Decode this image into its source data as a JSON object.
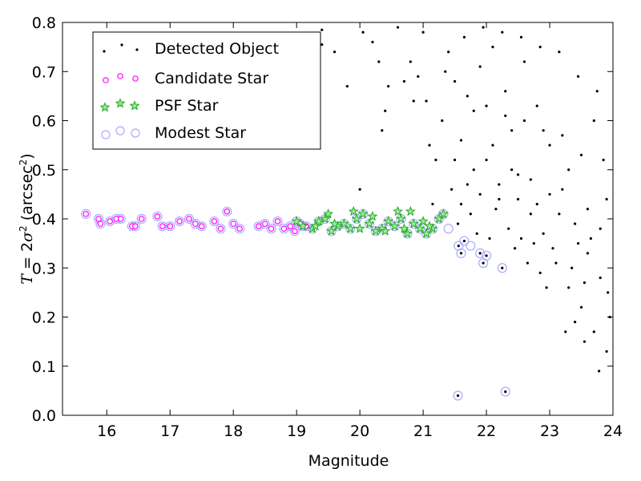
{
  "chart_data": {
    "type": "scatter",
    "xlabel": "Magnitude",
    "ylabel_parts": {
      "var": "T",
      "eq": " = 2",
      "sigma": "σ",
      "sq": "2",
      "unit_open": " (arcsec",
      "unit_sup": "2",
      "unit_close": ")"
    },
    "xlim": [
      15.3,
      24
    ],
    "ylim": [
      0.0,
      0.8
    ],
    "xticks": [
      16,
      17,
      18,
      19,
      20,
      21,
      22,
      23,
      24
    ],
    "yticks": [
      0.0,
      0.1,
      0.2,
      0.3,
      0.4,
      0.5,
      0.6,
      0.7,
      0.8
    ],
    "ytick_labels": [
      "0.0",
      "0.1",
      "0.2",
      "0.3",
      "0.4",
      "0.5",
      "0.6",
      "0.7",
      "0.8"
    ],
    "grid": false,
    "legend_position": "top-left",
    "series": [
      {
        "name": "Detected Object",
        "marker": "dot",
        "color": "#000000",
        "points": [
          [
            15.67,
            0.41
          ],
          [
            15.87,
            0.4
          ],
          [
            15.9,
            0.39
          ],
          [
            16.05,
            0.395
          ],
          [
            16.15,
            0.4
          ],
          [
            16.22,
            0.4
          ],
          [
            16.4,
            0.385
          ],
          [
            16.45,
            0.385
          ],
          [
            16.55,
            0.4
          ],
          [
            16.8,
            0.405
          ],
          [
            16.88,
            0.385
          ],
          [
            17.0,
            0.385
          ],
          [
            17.15,
            0.395
          ],
          [
            17.3,
            0.4
          ],
          [
            17.4,
            0.39
          ],
          [
            17.5,
            0.385
          ],
          [
            17.7,
            0.395
          ],
          [
            17.8,
            0.38
          ],
          [
            17.9,
            0.415
          ],
          [
            18.0,
            0.39
          ],
          [
            18.1,
            0.38
          ],
          [
            18.4,
            0.385
          ],
          [
            18.5,
            0.39
          ],
          [
            18.6,
            0.38
          ],
          [
            18.7,
            0.395
          ],
          [
            18.8,
            0.38
          ],
          [
            18.9,
            0.385
          ],
          [
            18.97,
            0.375
          ],
          [
            19.2,
            0.63
          ],
          [
            19.4,
            0.785
          ],
          [
            19.4,
            0.755
          ],
          [
            19.6,
            0.74
          ],
          [
            19.8,
            0.67
          ],
          [
            20.0,
            0.46
          ],
          [
            20.05,
            0.78
          ],
          [
            20.2,
            0.76
          ],
          [
            20.3,
            0.72
          ],
          [
            20.35,
            0.58
          ],
          [
            20.4,
            0.62
          ],
          [
            20.45,
            0.67
          ],
          [
            20.6,
            0.79
          ],
          [
            20.7,
            0.68
          ],
          [
            20.8,
            0.72
          ],
          [
            20.85,
            0.64
          ],
          [
            20.92,
            0.69
          ],
          [
            21.0,
            0.78
          ],
          [
            21.05,
            0.64
          ],
          [
            21.1,
            0.55
          ],
          [
            21.15,
            0.43
          ],
          [
            21.2,
            0.52
          ],
          [
            21.3,
            0.6
          ],
          [
            21.55,
            0.04
          ],
          [
            21.56,
            0.345
          ],
          [
            21.6,
            0.33
          ],
          [
            21.65,
            0.355
          ],
          [
            21.9,
            0.33
          ],
          [
            21.95,
            0.31
          ],
          [
            22.0,
            0.325
          ],
          [
            22.3,
            0.048
          ],
          [
            22.25,
            0.3
          ],
          [
            21.4,
            0.74
          ],
          [
            21.5,
            0.68
          ],
          [
            21.6,
            0.56
          ],
          [
            21.7,
            0.47
          ],
          [
            21.8,
            0.62
          ],
          [
            21.9,
            0.71
          ],
          [
            22.0,
            0.52
          ],
          [
            22.1,
            0.75
          ],
          [
            22.2,
            0.44
          ],
          [
            22.3,
            0.66
          ],
          [
            22.4,
            0.58
          ],
          [
            22.5,
            0.49
          ],
          [
            22.6,
            0.72
          ],
          [
            22.7,
            0.41
          ],
          [
            22.8,
            0.63
          ],
          [
            22.9,
            0.37
          ],
          [
            23.0,
            0.55
          ],
          [
            23.1,
            0.31
          ],
          [
            23.2,
            0.46
          ],
          [
            23.3,
            0.26
          ],
          [
            23.4,
            0.39
          ],
          [
            23.5,
            0.22
          ],
          [
            23.6,
            0.33
          ],
          [
            23.7,
            0.17
          ],
          [
            23.8,
            0.28
          ],
          [
            23.9,
            0.13
          ],
          [
            23.95,
            0.2
          ],
          [
            23.78,
            0.09
          ],
          [
            23.25,
            0.17
          ],
          [
            22.95,
            0.26
          ],
          [
            21.45,
            0.46
          ],
          [
            21.55,
            0.39
          ],
          [
            21.75,
            0.41
          ],
          [
            21.85,
            0.37
          ],
          [
            22.05,
            0.36
          ],
          [
            22.15,
            0.42
          ],
          [
            22.35,
            0.38
          ],
          [
            22.45,
            0.34
          ],
          [
            22.55,
            0.36
          ],
          [
            22.65,
            0.31
          ],
          [
            22.75,
            0.35
          ],
          [
            22.85,
            0.29
          ],
          [
            23.05,
            0.34
          ],
          [
            23.15,
            0.41
          ],
          [
            23.35,
            0.3
          ],
          [
            23.45,
            0.35
          ],
          [
            23.55,
            0.27
          ],
          [
            23.65,
            0.36
          ],
          [
            21.35,
            0.7
          ],
          [
            21.65,
            0.77
          ],
          [
            21.95,
            0.79
          ],
          [
            22.25,
            0.78
          ],
          [
            22.55,
            0.77
          ],
          [
            22.85,
            0.75
          ],
          [
            23.15,
            0.74
          ],
          [
            23.45,
            0.69
          ],
          [
            23.75,
            0.66
          ],
          [
            23.85,
            0.52
          ],
          [
            23.7,
            0.6
          ],
          [
            23.9,
            0.44
          ],
          [
            21.5,
            0.52
          ],
          [
            21.8,
            0.5
          ],
          [
            22.1,
            0.55
          ],
          [
            22.4,
            0.5
          ],
          [
            22.7,
            0.48
          ],
          [
            23.0,
            0.45
          ],
          [
            23.3,
            0.5
          ],
          [
            23.6,
            0.42
          ],
          [
            23.8,
            0.38
          ],
          [
            23.92,
            0.25
          ],
          [
            23.55,
            0.15
          ],
          [
            23.4,
            0.19
          ],
          [
            21.7,
            0.65
          ],
          [
            22.0,
            0.63
          ],
          [
            22.3,
            0.61
          ],
          [
            22.6,
            0.6
          ],
          [
            22.9,
            0.58
          ],
          [
            23.2,
            0.57
          ],
          [
            23.5,
            0.53
          ],
          [
            21.6,
            0.43
          ],
          [
            21.9,
            0.45
          ],
          [
            22.2,
            0.47
          ],
          [
            22.5,
            0.44
          ],
          [
            22.8,
            0.43
          ]
        ]
      },
      {
        "name": "Candidate Star",
        "marker": "circle-small",
        "color": "#ff00ff",
        "points": [
          [
            15.67,
            0.41
          ],
          [
            15.87,
            0.4
          ],
          [
            15.9,
            0.39
          ],
          [
            16.05,
            0.395
          ],
          [
            16.15,
            0.4
          ],
          [
            16.22,
            0.4
          ],
          [
            16.4,
            0.385
          ],
          [
            16.45,
            0.385
          ],
          [
            16.55,
            0.4
          ],
          [
            16.8,
            0.405
          ],
          [
            16.88,
            0.385
          ],
          [
            17.0,
            0.385
          ],
          [
            17.15,
            0.395
          ],
          [
            17.3,
            0.4
          ],
          [
            17.4,
            0.39
          ],
          [
            17.5,
            0.385
          ],
          [
            17.7,
            0.395
          ],
          [
            17.8,
            0.38
          ],
          [
            17.9,
            0.415
          ],
          [
            18.0,
            0.39
          ],
          [
            18.1,
            0.38
          ],
          [
            18.4,
            0.385
          ],
          [
            18.5,
            0.39
          ],
          [
            18.6,
            0.38
          ],
          [
            18.7,
            0.395
          ],
          [
            18.8,
            0.38
          ],
          [
            18.9,
            0.385
          ],
          [
            18.97,
            0.375
          ],
          [
            19.05,
            0.39
          ],
          [
            19.15,
            0.385
          ]
        ]
      },
      {
        "name": "PSF Star",
        "marker": "star",
        "color": "#22aa22",
        "points": [
          [
            19.0,
            0.395
          ],
          [
            19.1,
            0.385
          ],
          [
            19.25,
            0.38
          ],
          [
            19.35,
            0.395
          ],
          [
            19.45,
            0.4
          ],
          [
            19.55,
            0.375
          ],
          [
            19.65,
            0.385
          ],
          [
            19.75,
            0.39
          ],
          [
            19.85,
            0.38
          ],
          [
            19.95,
            0.4
          ],
          [
            20.05,
            0.41
          ],
          [
            20.15,
            0.39
          ],
          [
            20.25,
            0.375
          ],
          [
            20.35,
            0.38
          ],
          [
            20.45,
            0.395
          ],
          [
            20.55,
            0.385
          ],
          [
            20.65,
            0.4
          ],
          [
            20.75,
            0.37
          ],
          [
            20.85,
            0.39
          ],
          [
            20.95,
            0.38
          ],
          [
            21.05,
            0.37
          ],
          [
            21.15,
            0.38
          ],
          [
            21.25,
            0.4
          ],
          [
            21.32,
            0.41
          ],
          [
            19.5,
            0.41
          ],
          [
            19.9,
            0.415
          ],
          [
            20.2,
            0.405
          ],
          [
            20.6,
            0.415
          ],
          [
            20.8,
            0.415
          ],
          [
            21.0,
            0.395
          ],
          [
            19.3,
            0.385
          ],
          [
            19.6,
            0.39
          ],
          [
            20.0,
            0.38
          ],
          [
            20.4,
            0.375
          ],
          [
            20.7,
            0.38
          ],
          [
            21.1,
            0.385
          ]
        ]
      },
      {
        "name": "Modest Star",
        "marker": "circle-large",
        "color": "#aaaaff",
        "points": [
          [
            15.67,
            0.41
          ],
          [
            15.87,
            0.4
          ],
          [
            15.9,
            0.39
          ],
          [
            16.05,
            0.395
          ],
          [
            16.15,
            0.4
          ],
          [
            16.22,
            0.4
          ],
          [
            16.4,
            0.385
          ],
          [
            16.45,
            0.385
          ],
          [
            16.55,
            0.4
          ],
          [
            16.8,
            0.405
          ],
          [
            16.88,
            0.385
          ],
          [
            17.0,
            0.385
          ],
          [
            17.15,
            0.395
          ],
          [
            17.3,
            0.4
          ],
          [
            17.4,
            0.39
          ],
          [
            17.5,
            0.385
          ],
          [
            17.7,
            0.395
          ],
          [
            17.8,
            0.38
          ],
          [
            17.9,
            0.415
          ],
          [
            18.0,
            0.39
          ],
          [
            18.1,
            0.38
          ],
          [
            18.4,
            0.385
          ],
          [
            18.5,
            0.39
          ],
          [
            18.6,
            0.38
          ],
          [
            18.7,
            0.395
          ],
          [
            18.8,
            0.38
          ],
          [
            18.9,
            0.385
          ],
          [
            18.97,
            0.375
          ],
          [
            19.05,
            0.39
          ],
          [
            19.15,
            0.385
          ],
          [
            19.0,
            0.395
          ],
          [
            19.1,
            0.385
          ],
          [
            19.25,
            0.38
          ],
          [
            19.35,
            0.395
          ],
          [
            19.45,
            0.4
          ],
          [
            19.55,
            0.375
          ],
          [
            19.65,
            0.385
          ],
          [
            19.75,
            0.39
          ],
          [
            19.85,
            0.38
          ],
          [
            19.95,
            0.4
          ],
          [
            20.05,
            0.41
          ],
          [
            20.15,
            0.39
          ],
          [
            20.25,
            0.375
          ],
          [
            20.35,
            0.38
          ],
          [
            20.45,
            0.395
          ],
          [
            20.55,
            0.385
          ],
          [
            20.65,
            0.4
          ],
          [
            20.75,
            0.37
          ],
          [
            20.85,
            0.39
          ],
          [
            20.95,
            0.38
          ],
          [
            21.05,
            0.37
          ],
          [
            21.15,
            0.38
          ],
          [
            21.25,
            0.4
          ],
          [
            21.32,
            0.41
          ],
          [
            21.4,
            0.38
          ],
          [
            21.55,
            0.04
          ],
          [
            21.56,
            0.345
          ],
          [
            21.6,
            0.33
          ],
          [
            21.65,
            0.355
          ],
          [
            21.9,
            0.33
          ],
          [
            21.95,
            0.31
          ],
          [
            22.0,
            0.325
          ],
          [
            22.3,
            0.048
          ],
          [
            22.25,
            0.3
          ],
          [
            21.75,
            0.345
          ]
        ]
      }
    ]
  }
}
